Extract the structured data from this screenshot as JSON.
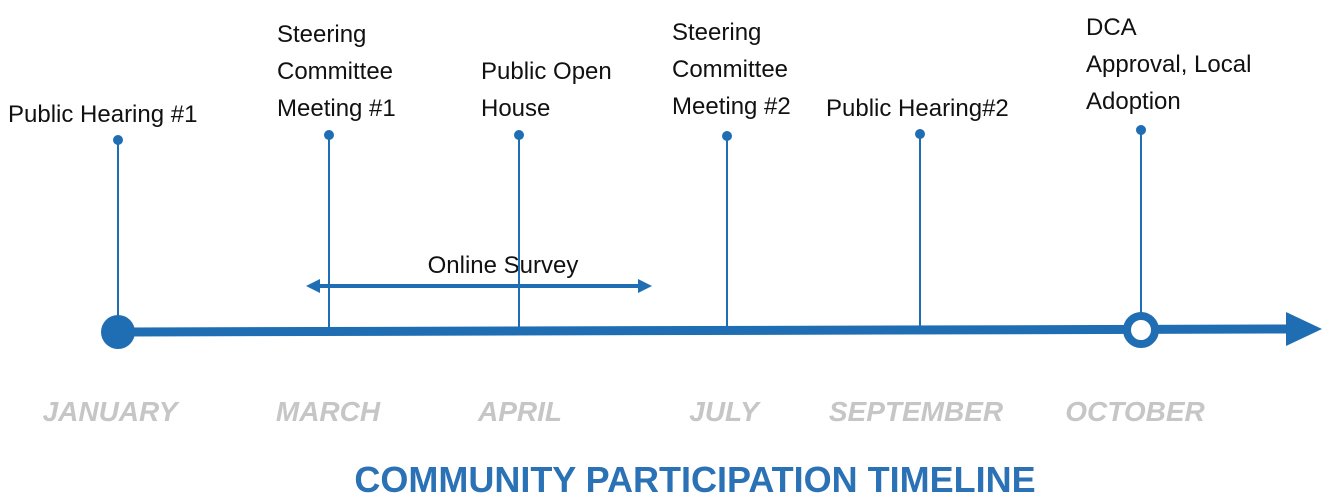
{
  "title": "COMMUNITY PARTICIPATION TIMELINE",
  "events": [
    {
      "lines": [
        "Public Hearing #1"
      ]
    },
    {
      "lines": [
        "Steering",
        "Committee",
        "Meeting #1"
      ]
    },
    {
      "lines": [
        "Public Open",
        "House"
      ]
    },
    {
      "lines": [
        "Steering",
        "Committee",
        "Meeting #2"
      ]
    },
    {
      "lines": [
        "Public Hearing#2"
      ]
    },
    {
      "lines": [
        "DCA",
        "Approval, Local",
        "Adoption"
      ]
    }
  ],
  "survey": "Online Survey",
  "months": [
    "JANUARY",
    "MARCH",
    "APRIL",
    "JULY",
    "SEPTEMBER",
    "OCTOBER"
  ]
}
